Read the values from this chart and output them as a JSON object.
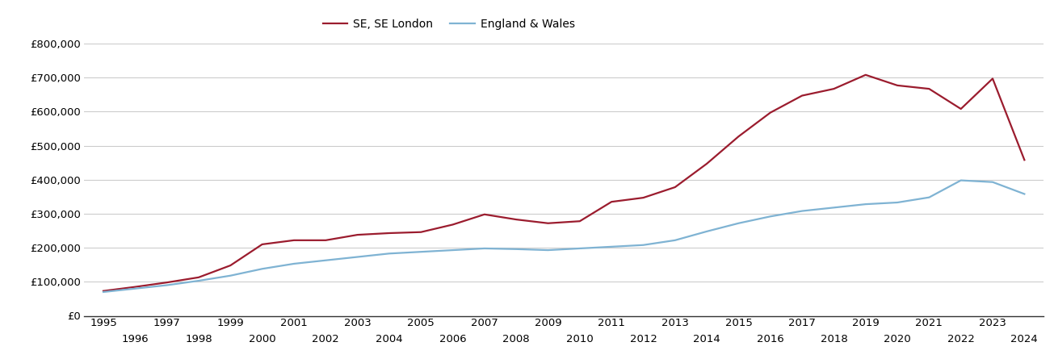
{
  "se_london_years": [
    1995,
    1996,
    1997,
    1998,
    1999,
    2000,
    2001,
    2002,
    2003,
    2004,
    2005,
    2006,
    2007,
    2008,
    2009,
    2010,
    2011,
    2012,
    2013,
    2014,
    2015,
    2016,
    2017,
    2018,
    2019,
    2020,
    2021,
    2022,
    2023,
    2024
  ],
  "se_london_values": [
    73000,
    85000,
    98000,
    113000,
    148000,
    210000,
    222000,
    222000,
    238000,
    243000,
    246000,
    268000,
    298000,
    283000,
    272000,
    278000,
    335000,
    347000,
    378000,
    447000,
    527000,
    597000,
    647000,
    667000,
    708000,
    677000,
    667000,
    608000,
    697000,
    458000
  ],
  "ew_years": [
    1995,
    1996,
    1997,
    1998,
    1999,
    2000,
    2001,
    2002,
    2003,
    2004,
    2005,
    2006,
    2007,
    2008,
    2009,
    2010,
    2011,
    2012,
    2013,
    2014,
    2015,
    2016,
    2017,
    2018,
    2019,
    2020,
    2021,
    2022,
    2023,
    2024
  ],
  "ew_values": [
    70000,
    80000,
    90000,
    103000,
    118000,
    138000,
    153000,
    163000,
    173000,
    183000,
    188000,
    193000,
    198000,
    196000,
    193000,
    198000,
    203000,
    208000,
    222000,
    248000,
    272000,
    292000,
    308000,
    318000,
    328000,
    333000,
    348000,
    398000,
    393000,
    358000
  ],
  "se_color": "#9b1c2e",
  "ew_color": "#7fb3d3",
  "se_label": "SE, SE London",
  "ew_label": "England & Wales",
  "ylim": [
    0,
    800000
  ],
  "yticks": [
    0,
    100000,
    200000,
    300000,
    400000,
    500000,
    600000,
    700000,
    800000
  ],
  "background_color": "#ffffff",
  "plot_bg_color": "#ffffff",
  "grid_color": "#cccccc",
  "line_width": 1.6,
  "legend_fontsize": 10,
  "tick_fontsize": 9.5
}
